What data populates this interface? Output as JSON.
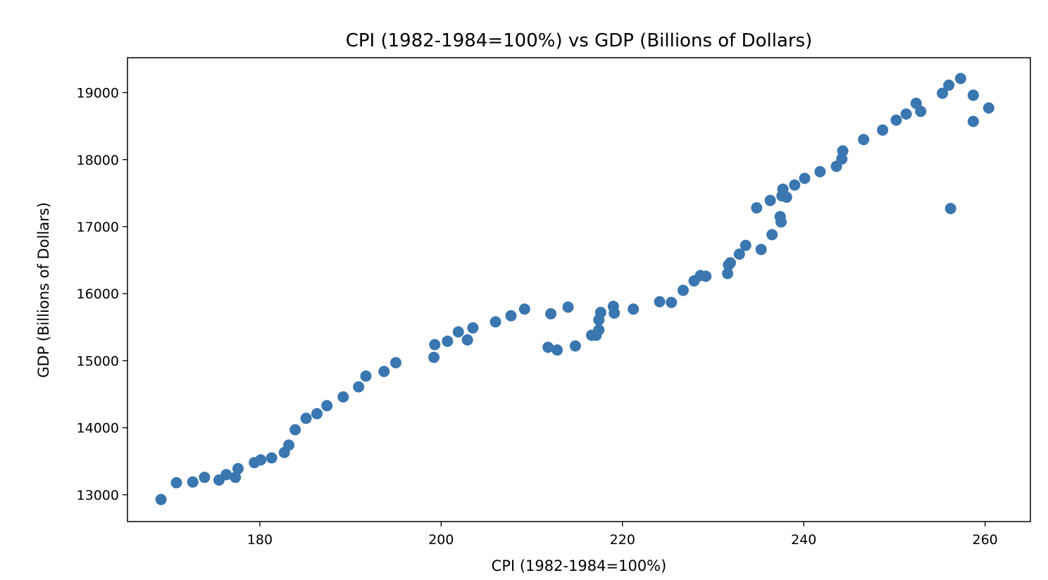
{
  "chart_data": {
    "type": "scatter",
    "title": "CPI (1982-1984=100%) vs GDP (Billions of Dollars)",
    "xlabel": "CPI (1982-1984=100%)",
    "ylabel": "GDP (Billions of Dollars)",
    "xlim": [
      165.4,
      265.0
    ],
    "ylim": [
      12600,
      19520
    ],
    "xticks": [
      180,
      200,
      220,
      240,
      260
    ],
    "yticks": [
      13000,
      14000,
      15000,
      16000,
      17000,
      18000,
      19000
    ],
    "grid": false,
    "legend": "none",
    "marker_color": "#3a76af",
    "points": [
      [
        169.1,
        12930
      ],
      [
        170.8,
        13180
      ],
      [
        172.6,
        13190
      ],
      [
        173.9,
        13260
      ],
      [
        175.5,
        13220
      ],
      [
        176.3,
        13300
      ],
      [
        177.3,
        13260
      ],
      [
        177.6,
        13390
      ],
      [
        179.4,
        13480
      ],
      [
        180.1,
        13520
      ],
      [
        181.3,
        13550
      ],
      [
        182.7,
        13630
      ],
      [
        183.2,
        13740
      ],
      [
        183.9,
        13970
      ],
      [
        185.1,
        14140
      ],
      [
        186.3,
        14210
      ],
      [
        187.4,
        14330
      ],
      [
        189.2,
        14460
      ],
      [
        190.9,
        14610
      ],
      [
        191.7,
        14770
      ],
      [
        193.7,
        14840
      ],
      [
        195.0,
        14970
      ],
      [
        199.2,
        15050
      ],
      [
        199.3,
        15240
      ],
      [
        200.7,
        15290
      ],
      [
        201.9,
        15430
      ],
      [
        202.9,
        15310
      ],
      [
        203.5,
        15490
      ],
      [
        206.0,
        15580
      ],
      [
        207.7,
        15670
      ],
      [
        209.2,
        15770
      ],
      [
        211.8,
        15200
      ],
      [
        212.1,
        15700
      ],
      [
        212.8,
        15160
      ],
      [
        214.0,
        15800
      ],
      [
        214.8,
        15220
      ],
      [
        216.6,
        15380
      ],
      [
        217.1,
        15380
      ],
      [
        217.4,
        15460
      ],
      [
        217.4,
        15610
      ],
      [
        217.6,
        15720
      ],
      [
        219.0,
        15810
      ],
      [
        219.1,
        15710
      ],
      [
        221.2,
        15770
      ],
      [
        224.1,
        15880
      ],
      [
        225.4,
        15870
      ],
      [
        226.7,
        16050
      ],
      [
        227.9,
        16190
      ],
      [
        228.6,
        16270
      ],
      [
        229.2,
        16260
      ],
      [
        231.6,
        16300
      ],
      [
        231.7,
        16430
      ],
      [
        231.9,
        16460
      ],
      [
        232.9,
        16590
      ],
      [
        233.6,
        16720
      ],
      [
        234.8,
        17280
      ],
      [
        235.3,
        16660
      ],
      [
        236.3,
        17390
      ],
      [
        236.5,
        16880
      ],
      [
        237.4,
        17150
      ],
      [
        237.5,
        17070
      ],
      [
        237.6,
        17460
      ],
      [
        237.7,
        17560
      ],
      [
        238.1,
        17440
      ],
      [
        239.0,
        17620
      ],
      [
        240.1,
        17720
      ],
      [
        241.8,
        17820
      ],
      [
        243.6,
        17900
      ],
      [
        244.2,
        18010
      ],
      [
        244.3,
        18130
      ],
      [
        246.6,
        18300
      ],
      [
        248.7,
        18440
      ],
      [
        250.2,
        18590
      ],
      [
        251.3,
        18680
      ],
      [
        252.4,
        18840
      ],
      [
        252.9,
        18720
      ],
      [
        255.3,
        18990
      ],
      [
        256.0,
        19110
      ],
      [
        256.2,
        17270
      ],
      [
        257.3,
        19210
      ],
      [
        258.7,
        18570
      ],
      [
        258.7,
        18960
      ],
      [
        260.4,
        18770
      ]
    ]
  }
}
